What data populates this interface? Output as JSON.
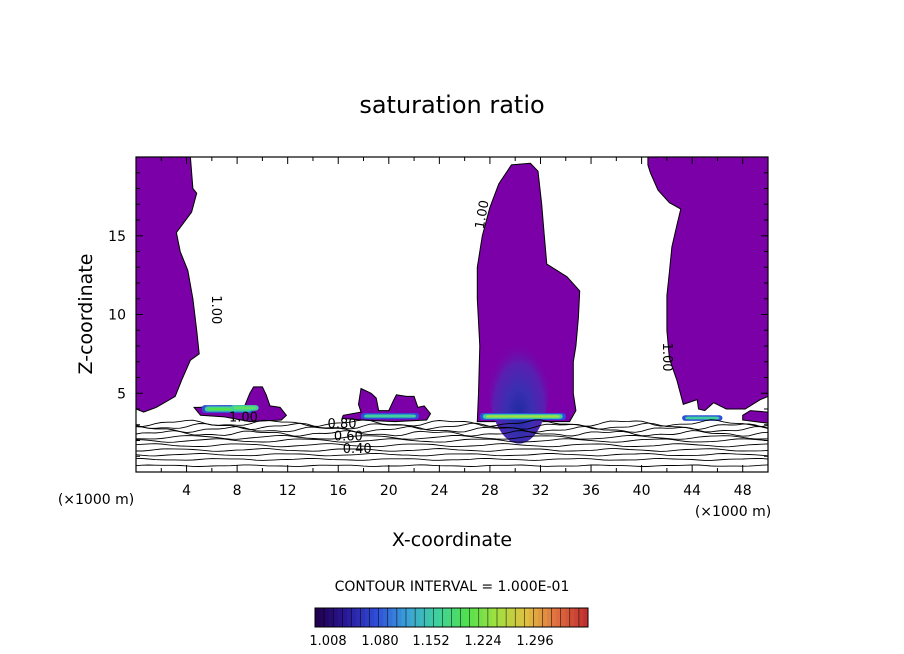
{
  "chart_data": {
    "type": "contour",
    "title": "saturation ratio",
    "xlabel": "X-coordinate",
    "ylabel": "Z-coordinate",
    "x_unit": "(×1000 m)",
    "y_unit": "(×1000 m)",
    "xlim": [
      0,
      50
    ],
    "ylim": [
      0,
      20
    ],
    "x_ticks": [
      4,
      8,
      12,
      16,
      20,
      24,
      28,
      32,
      36,
      40,
      44,
      48
    ],
    "y_ticks": [
      5,
      10,
      15
    ],
    "contour_interval_text": "CONTOUR INTERVAL = 1.000E-01",
    "contour_labels": [
      {
        "text": "1.00",
        "x": 6.0,
        "y": 10.3,
        "rotate": 90
      },
      {
        "text": "1.00",
        "x": 27.7,
        "y": 16.3,
        "rotate": -80
      },
      {
        "text": "1.00",
        "x": 41.7,
        "y": 7.3,
        "rotate": 90
      },
      {
        "text": "1.00",
        "x": 8.5,
        "y": 3.2,
        "rotate": 0
      },
      {
        "text": "0.80",
        "x": 16.3,
        "y": 2.8,
        "rotate": 0
      },
      {
        "text": "0.60",
        "x": 16.8,
        "y": 2.0,
        "rotate": 0
      },
      {
        "text": "0.40",
        "x": 17.5,
        "y": 1.2,
        "rotate": 0
      }
    ],
    "colorbar": {
      "labels": [
        "1.008",
        "1.080",
        "1.152",
        "1.224",
        "1.296"
      ],
      "colors": [
        "#200050",
        "#2a1a9a",
        "#2f4fd8",
        "#3aa0d8",
        "#40d0a0",
        "#50e050",
        "#a0e040",
        "#e0c040",
        "#e07040",
        "#c03030"
      ]
    },
    "fill_color": "#7b00a8",
    "clouds": [
      {
        "name": "left-column",
        "outline": [
          [
            0,
            20
          ],
          [
            4.3,
            20
          ],
          [
            4.5,
            18
          ],
          [
            4.8,
            17.7
          ],
          [
            4.4,
            16.5
          ],
          [
            3.2,
            15.2
          ],
          [
            3.5,
            14
          ],
          [
            4.1,
            12.8
          ],
          [
            4.5,
            11
          ],
          [
            4.8,
            9
          ],
          [
            5.0,
            7.5
          ],
          [
            4.3,
            7.1
          ],
          [
            3.6,
            5.8
          ],
          [
            3.1,
            4.8
          ],
          [
            1.6,
            4.1
          ],
          [
            0.6,
            3.8
          ],
          [
            0,
            4.0
          ]
        ]
      },
      {
        "name": "center-column",
        "outline": [
          [
            27.0,
            3.2
          ],
          [
            27.1,
            5
          ],
          [
            27.2,
            8
          ],
          [
            27.0,
            11
          ],
          [
            27.0,
            13
          ],
          [
            27.4,
            15
          ],
          [
            28.0,
            16.8
          ],
          [
            28.7,
            18.3
          ],
          [
            29.7,
            19.5
          ],
          [
            31.2,
            19.6
          ],
          [
            31.8,
            19.1
          ],
          [
            32.1,
            17
          ],
          [
            32.3,
            15
          ],
          [
            32.5,
            13.2
          ],
          [
            34.1,
            12.4
          ],
          [
            35.1,
            11.5
          ],
          [
            35.0,
            9.8
          ],
          [
            34.8,
            8.0
          ],
          [
            34.6,
            7
          ],
          [
            34.6,
            5
          ],
          [
            34.8,
            3.9
          ],
          [
            34.3,
            3.2
          ]
        ]
      },
      {
        "name": "right-column",
        "outline": [
          [
            40.5,
            20
          ],
          [
            50,
            20
          ],
          [
            50,
            4.8
          ],
          [
            49.4,
            4.6
          ],
          [
            48.2,
            4.0
          ],
          [
            46.7,
            4.0
          ],
          [
            45.7,
            4.4
          ],
          [
            45.0,
            3.9
          ],
          [
            44.5,
            4.0
          ],
          [
            44.4,
            4.6
          ],
          [
            43.3,
            4.3
          ],
          [
            42.8,
            5.8
          ],
          [
            42.2,
            7.2
          ],
          [
            42.0,
            9
          ],
          [
            42.0,
            11.2
          ],
          [
            42.2,
            12.7
          ],
          [
            42.4,
            14.3
          ],
          [
            42.8,
            15.7
          ],
          [
            43.1,
            16.7
          ],
          [
            42.2,
            17.1
          ],
          [
            41.3,
            17.9
          ],
          [
            40.7,
            19.0
          ],
          [
            40.5,
            19.5
          ]
        ]
      },
      {
        "name": "left-small-cloud",
        "outline": [
          [
            4.6,
            4.1
          ],
          [
            5.1,
            3.6
          ],
          [
            7.0,
            3.5
          ],
          [
            9.0,
            3.2
          ],
          [
            11.5,
            3.3
          ],
          [
            11.9,
            3.6
          ],
          [
            11.4,
            4.1
          ],
          [
            10.6,
            4.2
          ],
          [
            10.3,
            4.9
          ],
          [
            10.0,
            5.4
          ],
          [
            9.3,
            5.4
          ],
          [
            9.0,
            5.0
          ],
          [
            8.6,
            4.2
          ],
          [
            6.5,
            4.2
          ],
          [
            5.0,
            4.1
          ]
        ]
      },
      {
        "name": "mid-left-cloud",
        "outline": [
          [
            16.3,
            3.4
          ],
          [
            17.8,
            3.3
          ],
          [
            20.5,
            3.2
          ],
          [
            23.0,
            3.3
          ],
          [
            23.3,
            3.7
          ],
          [
            22.8,
            4.2
          ],
          [
            22.3,
            4.1
          ],
          [
            22.0,
            4.8
          ],
          [
            21.4,
            4.8
          ],
          [
            20.6,
            4.9
          ],
          [
            20.4,
            4.6
          ],
          [
            20.0,
            3.9
          ],
          [
            19.2,
            3.9
          ],
          [
            19.0,
            4.7
          ],
          [
            18.6,
            5.0
          ],
          [
            17.8,
            5.3
          ],
          [
            17.6,
            4.3
          ],
          [
            17.8,
            3.8
          ],
          [
            16.4,
            3.6
          ]
        ]
      },
      {
        "name": "far-right-cloud",
        "outline": [
          [
            48.0,
            3.3
          ],
          [
            50,
            3.1
          ],
          [
            50,
            3.8
          ],
          [
            48.6,
            3.9
          ],
          [
            48.0,
            3.6
          ]
        ]
      }
    ],
    "bright_patches": [
      {
        "x": 5.2,
        "y": 3.75,
        "w": 4.2,
        "h": 0.5,
        "colors": [
          "#3050d0",
          "#40d0a0",
          "#50e050"
        ]
      },
      {
        "x": 7.5,
        "y": 3.9,
        "w": 2.2,
        "h": 0.35,
        "colors": [
          "#40d0a0",
          "#60e060"
        ]
      },
      {
        "x": 17.8,
        "y": 3.35,
        "w": 4.6,
        "h": 0.4,
        "colors": [
          "#2f4fd8",
          "#40d0a0"
        ]
      },
      {
        "x": 27.2,
        "y": 3.3,
        "w": 6.8,
        "h": 0.45,
        "colors": [
          "#2f4fd8",
          "#40d0a0",
          "#a0e040"
        ]
      },
      {
        "x": 43.2,
        "y": 3.25,
        "w": 3.2,
        "h": 0.35,
        "colors": [
          "#2f4fd8",
          "#40d0a0"
        ]
      }
    ],
    "center_gradient": {
      "cx": 30.3,
      "cy": 5.6,
      "rx": 2.4,
      "ry": 3.8
    }
  }
}
